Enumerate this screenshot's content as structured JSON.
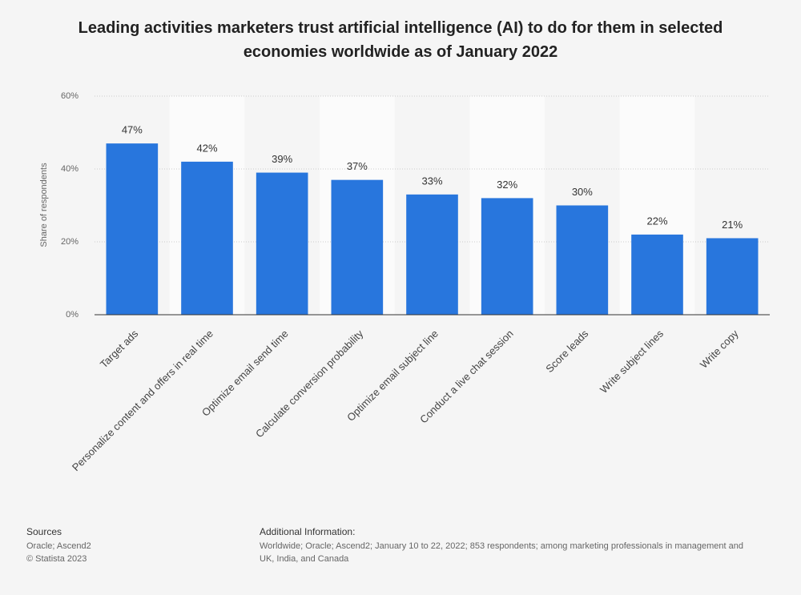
{
  "chart_data": {
    "type": "bar",
    "title": "Leading activities marketers trust artificial intelligence (AI) to do for them in selected economies worldwide as of January 2022",
    "y_label": "Share of respondents",
    "categories": [
      "Target ads",
      "Personalize content and offers in real time",
      "Optimize email send time",
      "Calculate conversion probability",
      "Optimize email subject line",
      "Conduct a live chat session",
      "Score leads",
      "Write subject lines",
      "Write copy"
    ],
    "values": [
      47,
      42,
      39,
      37,
      33,
      32,
      30,
      22,
      21
    ],
    "value_labels": [
      "47%",
      "42%",
      "39%",
      "37%",
      "33%",
      "32%",
      "30%",
      "22%",
      "21%"
    ],
    "color": "#2876dd",
    "ylim": [
      0,
      60
    ],
    "yticks": [
      {
        "value": 0,
        "label": "0%"
      },
      {
        "value": 20,
        "label": "20%"
      },
      {
        "value": 40,
        "label": "40%"
      },
      {
        "value": 60,
        "label": "60%"
      }
    ],
    "grid": true,
    "sources_title": "Sources",
    "sources": [
      "Oracle; Ascend2",
      "© Statista 2023"
    ],
    "info_title": "Additional Information:",
    "info": [
      "Worldwide; Oracle; Ascend2; January 10 to 22, 2022; 853 respondents; among marketing professionals in management and",
      "UK, India, and Canada"
    ]
  }
}
